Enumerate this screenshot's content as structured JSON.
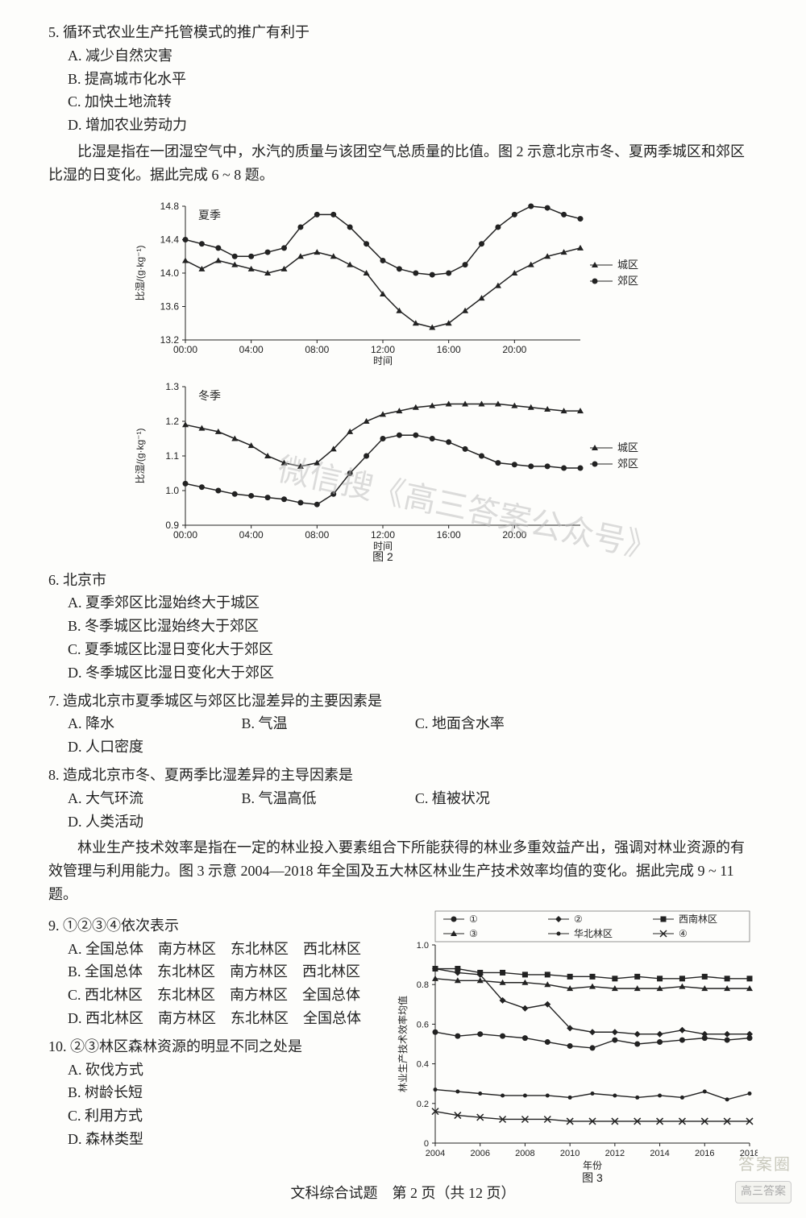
{
  "q5": {
    "stem": "5. 循环式农业生产托管模式的推广有利于",
    "opts": [
      "A. 减少自然灾害",
      "B. 提高城市化水平",
      "C. 加快土地流转",
      "D. 增加农业劳动力"
    ]
  },
  "para1": "比湿是指在一团湿空气中，水汽的质量与该团空气总质量的比值。图 2 示意北京市冬、夏两季城区和郊区比湿的日变化。据此完成 6 ~ 8 题。",
  "chart_summer": {
    "title": "夏季",
    "ylabel": "比湿/(g·kg⁻¹)",
    "xlabel": "时间",
    "xticks": [
      "00:00",
      "04:00",
      "08:00",
      "12:00",
      "16:00",
      "20:00"
    ],
    "yticks": [
      "13.2",
      "13.6",
      "14.0",
      "14.4",
      "14.8"
    ],
    "ymin": 13.2,
    "ymax": 14.8,
    "legend": [
      "城区",
      "郊区"
    ],
    "city": [
      14.15,
      14.05,
      14.15,
      14.1,
      14.05,
      14.0,
      14.05,
      14.2,
      14.25,
      14.2,
      14.1,
      14.0,
      13.75,
      13.55,
      13.4,
      13.35,
      13.4,
      13.55,
      13.7,
      13.85,
      14.0,
      14.1,
      14.2,
      14.25,
      14.3
    ],
    "suburb": [
      14.4,
      14.35,
      14.3,
      14.2,
      14.2,
      14.25,
      14.3,
      14.55,
      14.7,
      14.7,
      14.55,
      14.35,
      14.15,
      14.05,
      14.0,
      13.98,
      14.0,
      14.1,
      14.35,
      14.55,
      14.7,
      14.8,
      14.78,
      14.7,
      14.65
    ],
    "city_color": "#222222",
    "suburb_color": "#222222",
    "marker_city": "triangle",
    "marker_suburb": "circle",
    "line_width": 1.5
  },
  "chart_winter": {
    "title": "冬季",
    "ylabel": "比湿/(g·kg⁻¹)",
    "xlabel": "时间",
    "xticks": [
      "00:00",
      "04:00",
      "08:00",
      "12:00",
      "16:00",
      "20:00"
    ],
    "yticks": [
      "0.9",
      "1.0",
      "1.1",
      "1.2",
      "1.3"
    ],
    "ymin": 0.9,
    "ymax": 1.3,
    "caption": "图 2",
    "city": [
      1.19,
      1.18,
      1.17,
      1.15,
      1.13,
      1.1,
      1.08,
      1.07,
      1.08,
      1.12,
      1.17,
      1.2,
      1.22,
      1.23,
      1.24,
      1.245,
      1.25,
      1.25,
      1.25,
      1.25,
      1.245,
      1.24,
      1.235,
      1.23,
      1.23
    ],
    "suburb": [
      1.02,
      1.01,
      1.0,
      0.99,
      0.985,
      0.98,
      0.975,
      0.965,
      0.96,
      0.99,
      1.05,
      1.1,
      1.15,
      1.16,
      1.16,
      1.15,
      1.14,
      1.12,
      1.1,
      1.08,
      1.075,
      1.07,
      1.07,
      1.065,
      1.065
    ],
    "city_color": "#222222",
    "suburb_color": "#222222",
    "marker_city": "triangle",
    "marker_suburb": "circle",
    "line_width": 1.5,
    "legend": [
      "城区",
      "郊区"
    ]
  },
  "q6": {
    "stem": "6. 北京市",
    "opts": [
      "A. 夏季郊区比湿始终大于城区",
      "B. 冬季城区比湿始终大于郊区",
      "C. 夏季城区比湿日变化大于郊区",
      "D. 冬季城区比湿日变化大于郊区"
    ]
  },
  "q7": {
    "stem": "7. 造成北京市夏季城区与郊区比湿差异的主要因素是",
    "opts": [
      "A. 降水",
      "B. 气温",
      "C. 地面含水率",
      "D. 人口密度"
    ]
  },
  "q8": {
    "stem": "8. 造成北京市冬、夏两季比湿差异的主导因素是",
    "opts": [
      "A. 大气环流",
      "B. 气温高低",
      "C. 植被状况",
      "D. 人类活动"
    ]
  },
  "para2": "林业生产技术效率是指在一定的林业投入要素组合下所能获得的林业多重效益产出，强调对林业资源的有效管理与利用能力。图 3 示意 2004—2018 年全国及五大林区林业生产技术效率均值的变化。据此完成 9 ~ 11 题。",
  "q9": {
    "stem": "9. ①②③④依次表示",
    "opts": [
      "A. 全国总体　南方林区　东北林区　西北林区",
      "B. 全国总体　东北林区　南方林区　西北林区",
      "C. 西北林区　东北林区　南方林区　全国总体",
      "D. 西北林区　南方林区　东北林区　全国总体"
    ]
  },
  "q10": {
    "stem": "10. ②③林区森林资源的明显不同之处是",
    "opts": [
      "A. 砍伐方式",
      "B. 树龄长短",
      "C. 利用方式",
      "D. 森林类型"
    ]
  },
  "chart3": {
    "xlabel": "年份",
    "ylabel": "林业生产技术效率均值",
    "caption": "图 3",
    "xticks": [
      "2004",
      "2006",
      "2008",
      "2010",
      "2012",
      "2014",
      "2016",
      "2018"
    ],
    "yticks": [
      "0",
      "0.2",
      "0.4",
      "0.6",
      "0.8",
      "1.0"
    ],
    "ymin": 0,
    "ymax": 1.0,
    "legend": [
      "①",
      "②",
      "西南林区",
      "③",
      "华北林区",
      "④"
    ],
    "series": {
      "s1": {
        "marker": "circle",
        "d": [
          0.56,
          0.54,
          0.55,
          0.54,
          0.53,
          0.51,
          0.49,
          0.48,
          0.52,
          0.5,
          0.51,
          0.52,
          0.53,
          0.52,
          0.53
        ]
      },
      "s2": {
        "marker": "diamond",
        "d": [
          0.88,
          0.86,
          0.85,
          0.72,
          0.68,
          0.7,
          0.58,
          0.56,
          0.56,
          0.55,
          0.55,
          0.57,
          0.55,
          0.55,
          0.55
        ]
      },
      "xn": {
        "marker": "square",
        "d": [
          0.88,
          0.88,
          0.86,
          0.86,
          0.85,
          0.85,
          0.84,
          0.84,
          0.83,
          0.84,
          0.83,
          0.83,
          0.84,
          0.83,
          0.83
        ]
      },
      "s3": {
        "marker": "triangle",
        "d": [
          0.83,
          0.82,
          0.82,
          0.81,
          0.81,
          0.8,
          0.78,
          0.79,
          0.78,
          0.78,
          0.78,
          0.79,
          0.78,
          0.78,
          0.78
        ]
      },
      "hb": {
        "marker": "dot",
        "d": [
          0.27,
          0.26,
          0.25,
          0.24,
          0.24,
          0.24,
          0.23,
          0.25,
          0.24,
          0.23,
          0.24,
          0.23,
          0.26,
          0.22,
          0.25
        ]
      },
      "s4": {
        "marker": "x",
        "d": [
          0.16,
          0.14,
          0.13,
          0.12,
          0.12,
          0.12,
          0.11,
          0.11,
          0.11,
          0.11,
          0.11,
          0.11,
          0.11,
          0.11,
          0.11
        ]
      }
    }
  },
  "footer": "文科综合试题　第 2 页（共 12 页）",
  "watermark1": "微信搜《高三答案公众号》",
  "corner": "高三答案",
  "corner2": "答案圈"
}
